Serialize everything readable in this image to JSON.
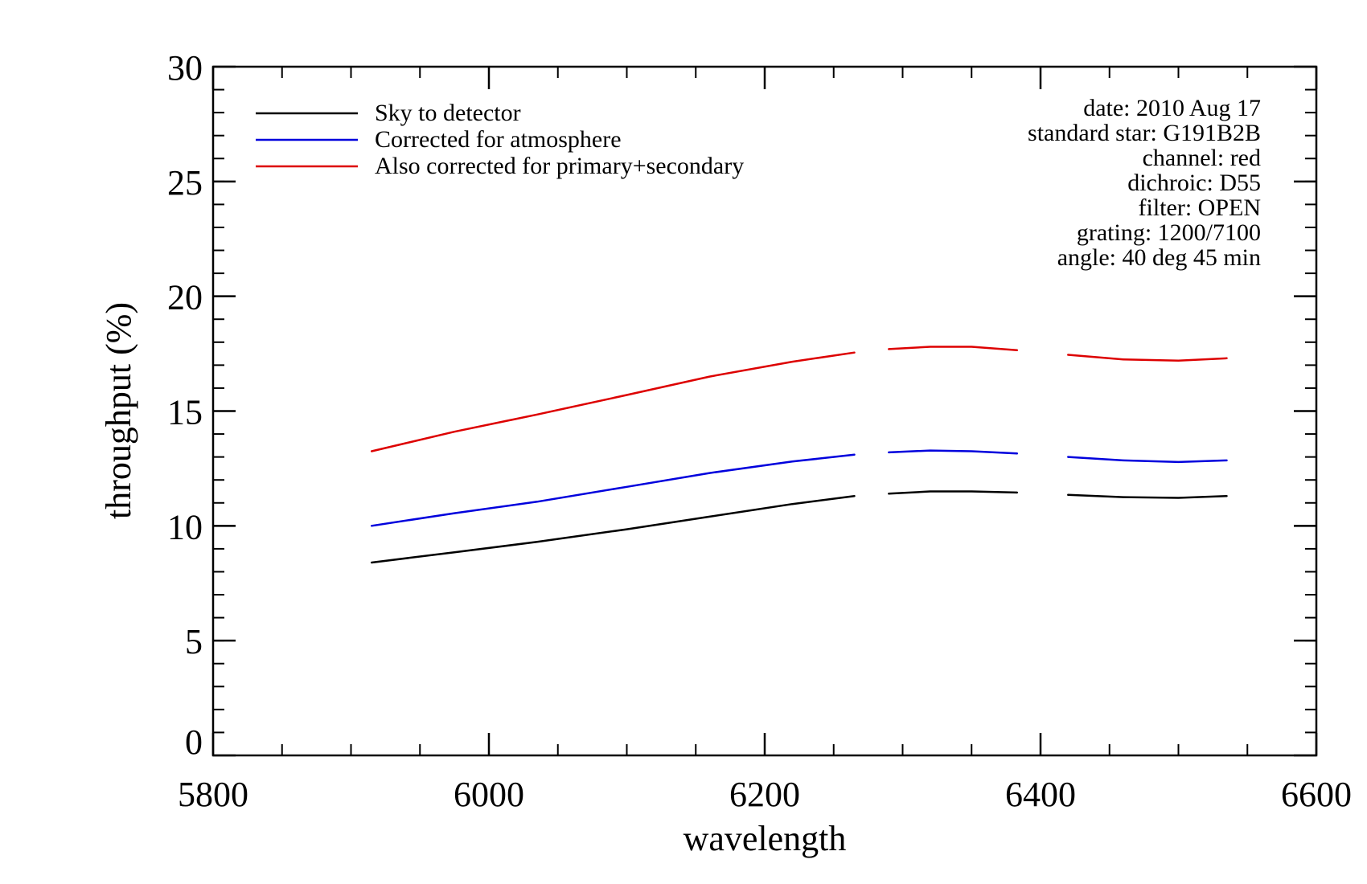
{
  "chart_data": {
    "type": "line",
    "xlabel": "wavelength",
    "ylabel": "throughput (%)",
    "xlim": [
      5800,
      6600
    ],
    "ylim": [
      0,
      30
    ],
    "x_ticks": [
      "5800",
      "6000",
      "6200",
      "6400",
      "6600"
    ],
    "y_ticks": [
      "0",
      "5",
      "10",
      "15",
      "20",
      "25",
      "30"
    ],
    "x_minor_step": 50,
    "y_minor_step": 1,
    "grid": false,
    "legend_position": "top-left",
    "series": [
      {
        "name": "Sky to detector",
        "color": "#000000",
        "segments": [
          [
            [
              5915,
              8.4
            ],
            [
              5975,
              8.85
            ],
            [
              6035,
              9.3
            ],
            [
              6100,
              9.85
            ],
            [
              6160,
              10.4
            ],
            [
              6220,
              10.95
            ],
            [
              6265,
              11.3
            ]
          ],
          [
            [
              6290,
              11.4
            ],
            [
              6320,
              11.5
            ],
            [
              6350,
              11.5
            ],
            [
              6383,
              11.45
            ]
          ],
          [
            [
              6420,
              11.35
            ],
            [
              6460,
              11.25
            ],
            [
              6500,
              11.22
            ],
            [
              6535,
              11.3
            ]
          ]
        ]
      },
      {
        "name": "Corrected for atmosphere",
        "color": "#0000dd",
        "segments": [
          [
            [
              5915,
              10.0
            ],
            [
              5975,
              10.55
            ],
            [
              6035,
              11.05
            ],
            [
              6100,
              11.7
            ],
            [
              6160,
              12.3
            ],
            [
              6220,
              12.8
            ],
            [
              6265,
              13.1
            ]
          ],
          [
            [
              6290,
              13.2
            ],
            [
              6320,
              13.28
            ],
            [
              6350,
              13.25
            ],
            [
              6383,
              13.15
            ]
          ],
          [
            [
              6420,
              13.0
            ],
            [
              6460,
              12.85
            ],
            [
              6500,
              12.78
            ],
            [
              6535,
              12.85
            ]
          ]
        ]
      },
      {
        "name": "Also corrected for primary+secondary",
        "color": "#dd0000",
        "segments": [
          [
            [
              5915,
              13.25
            ],
            [
              5975,
              14.1
            ],
            [
              6035,
              14.85
            ],
            [
              6100,
              15.7
            ],
            [
              6160,
              16.5
            ],
            [
              6220,
              17.15
            ],
            [
              6265,
              17.55
            ]
          ],
          [
            [
              6290,
              17.7
            ],
            [
              6320,
              17.8
            ],
            [
              6350,
              17.8
            ],
            [
              6383,
              17.65
            ]
          ],
          [
            [
              6420,
              17.45
            ],
            [
              6460,
              17.25
            ],
            [
              6500,
              17.2
            ],
            [
              6535,
              17.3
            ]
          ]
        ]
      }
    ],
    "annotations": [
      "date: 2010 Aug 17",
      "standard star: G191B2B",
      "channel: red",
      "dichroic: D55",
      "filter: OPEN",
      "grating: 1200/7100",
      "angle: 40 deg 45 min"
    ]
  }
}
